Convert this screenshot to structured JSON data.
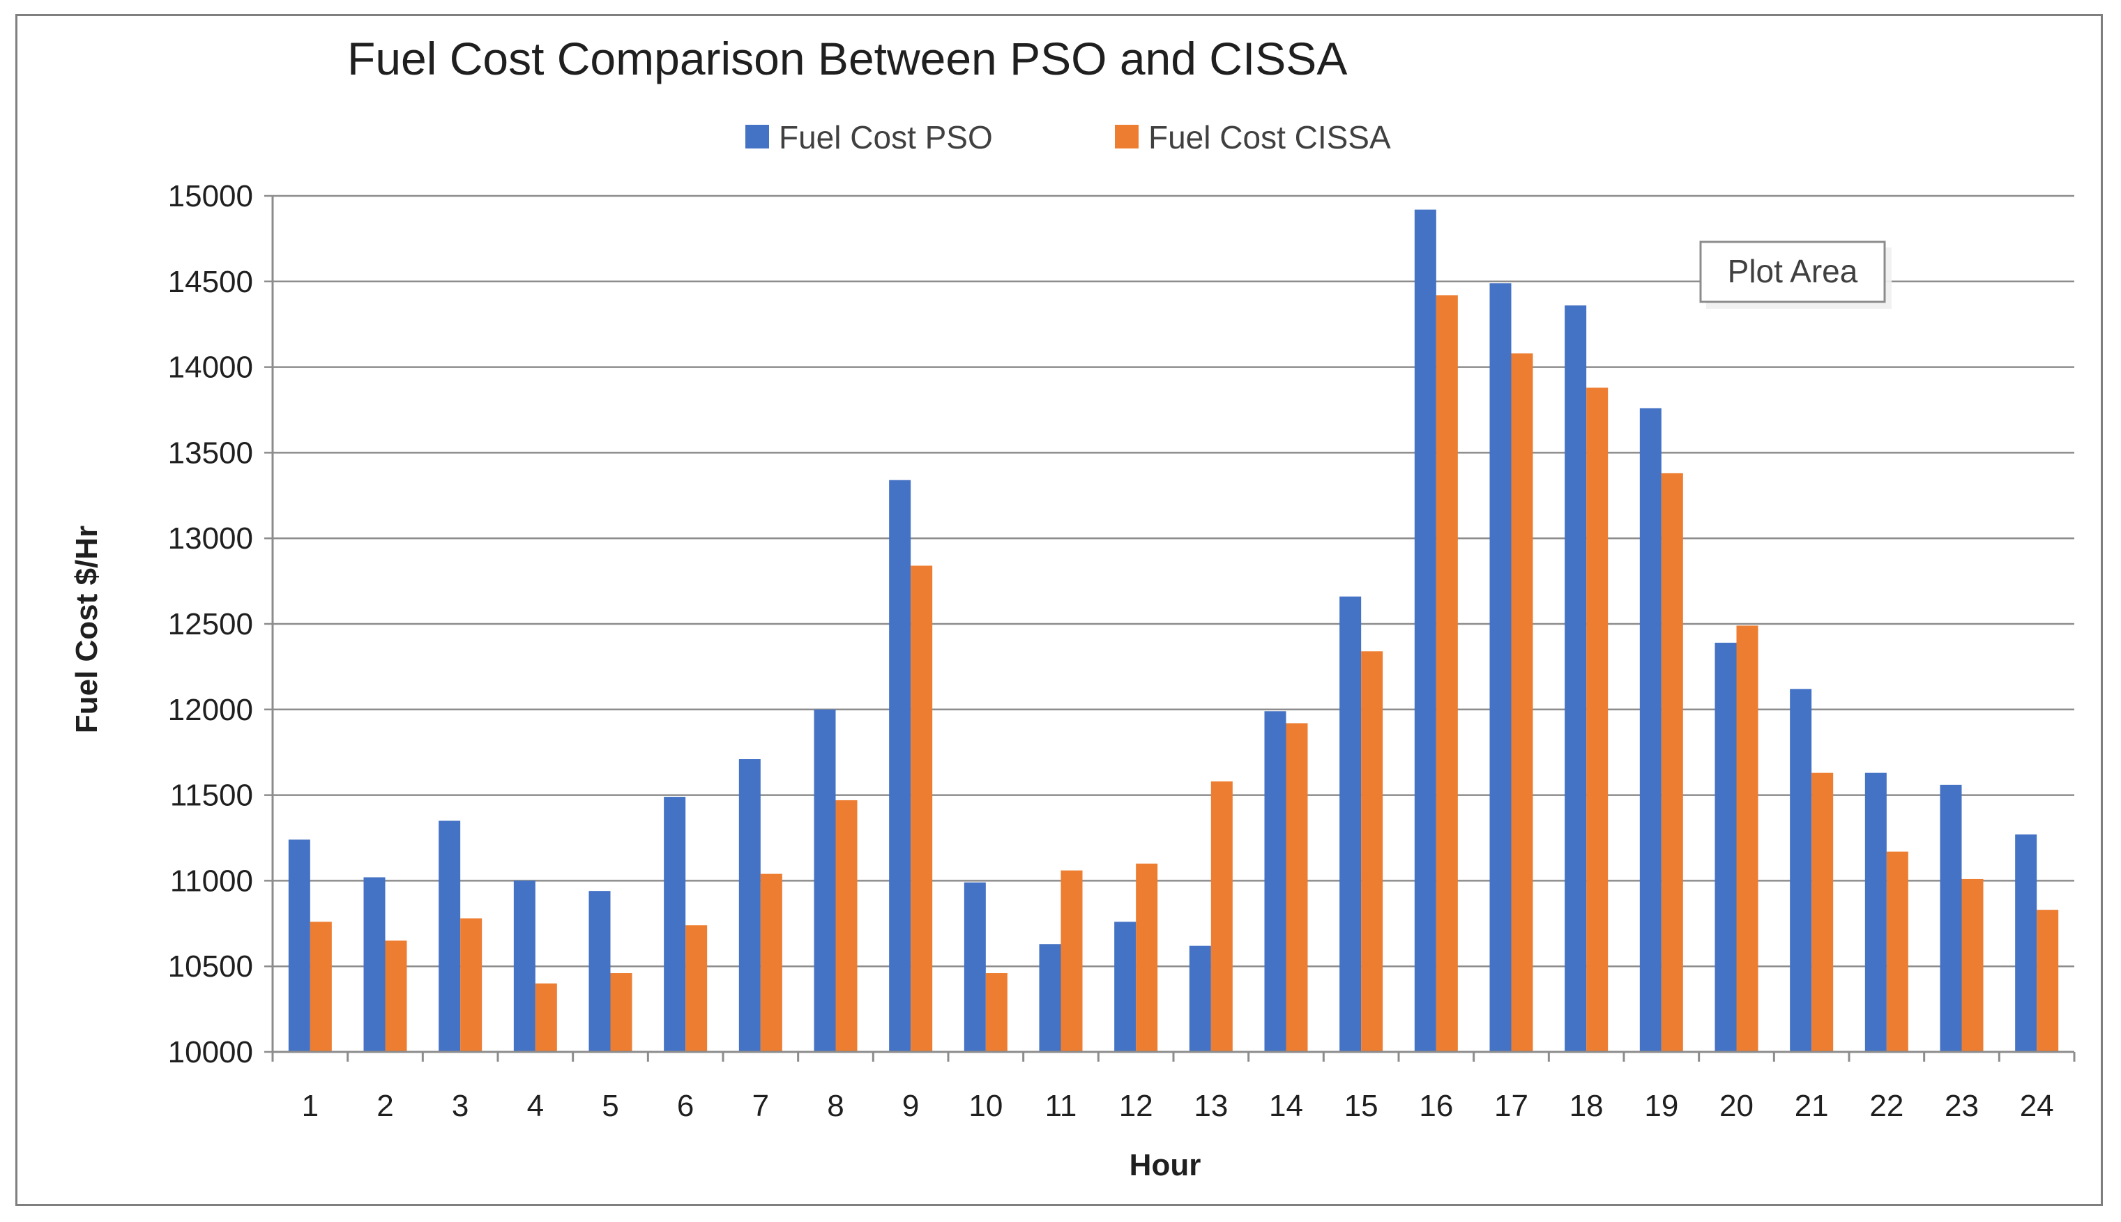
{
  "chart_data": {
    "type": "bar",
    "title": "Fuel Cost Comparison Between PSO and CISSA",
    "xlabel": "Hour",
    "ylabel": "Fuel Cost $/Hr",
    "ylim": [
      10000,
      15000
    ],
    "ytick_step": 500,
    "grid": true,
    "legend_position": "top-center",
    "categories": [
      "1",
      "2",
      "3",
      "4",
      "5",
      "6",
      "7",
      "8",
      "9",
      "10",
      "11",
      "12",
      "13",
      "14",
      "15",
      "16",
      "17",
      "18",
      "19",
      "20",
      "21",
      "22",
      "23",
      "24"
    ],
    "series": [
      {
        "name": "Fuel Cost PSO",
        "color": "#4472C4",
        "values": [
          11240,
          11020,
          11350,
          11000,
          10940,
          11490,
          11710,
          12000,
          13340,
          10990,
          10630,
          10760,
          10620,
          11990,
          12660,
          14920,
          14490,
          14360,
          13760,
          12390,
          12120,
          11630,
          11560,
          11270
        ]
      },
      {
        "name": "Fuel Cost CISSA",
        "color": "#ED7D31",
        "values": [
          10760,
          10650,
          10780,
          10400,
          10460,
          10740,
          11040,
          11470,
          12840,
          10460,
          11060,
          11100,
          11580,
          11920,
          12340,
          14420,
          14080,
          13880,
          13380,
          12490,
          11630,
          11170,
          11010,
          10830
        ]
      }
    ]
  },
  "tooltip": {
    "label": "Plot Area"
  },
  "colors": {
    "grid": "#8c8c8c",
    "axis": "#8c8c8c",
    "frame": "#7f7f7f"
  }
}
